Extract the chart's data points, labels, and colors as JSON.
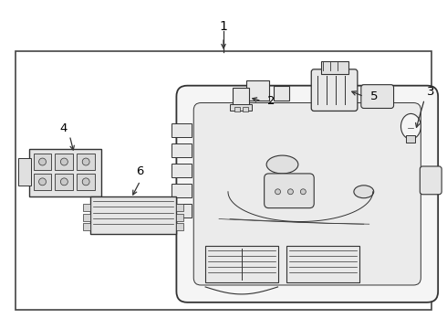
{
  "bg_color": "#ffffff",
  "fill_color": "#f2f2f2",
  "line_color": "#333333",
  "text_color": "#000000",
  "fig_width": 4.9,
  "fig_height": 3.6,
  "dpi": 100
}
